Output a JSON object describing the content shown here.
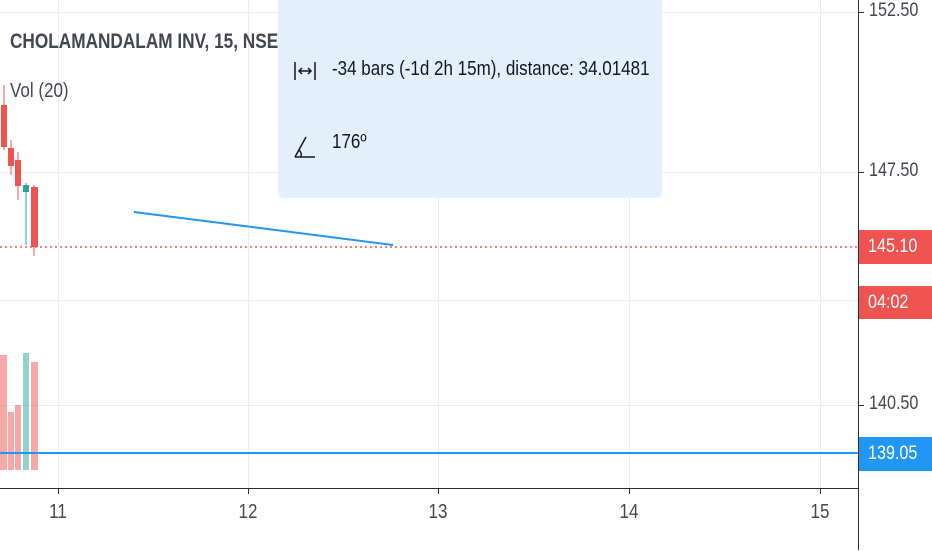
{
  "chart": {
    "symbol_title": "CHOLAMANDALAM INV, 15, NSE",
    "volume_label": "Vol (20)"
  },
  "measure_tooltip": {
    "bars_text": "-34 bars (-1d 2h 15m), distance: 34.01481",
    "angle_text": "176º",
    "icon_top": "arrow-down-icon",
    "icon_bars": "bars-range-icon",
    "icon_angle": "angle-icon"
  },
  "price_axis": {
    "labels": [
      "152.50",
      "147.50",
      "140.50"
    ],
    "current_price": "145.10",
    "countdown": "04:02",
    "line_price": "139.05"
  },
  "time_axis": {
    "labels": [
      "11",
      "12",
      "13",
      "14",
      "15"
    ]
  },
  "colors": {
    "bearish": "#ef5350",
    "bullish": "#26a69a",
    "trendline": "#2196f3",
    "tooltip_bg": "#e3effa"
  }
}
